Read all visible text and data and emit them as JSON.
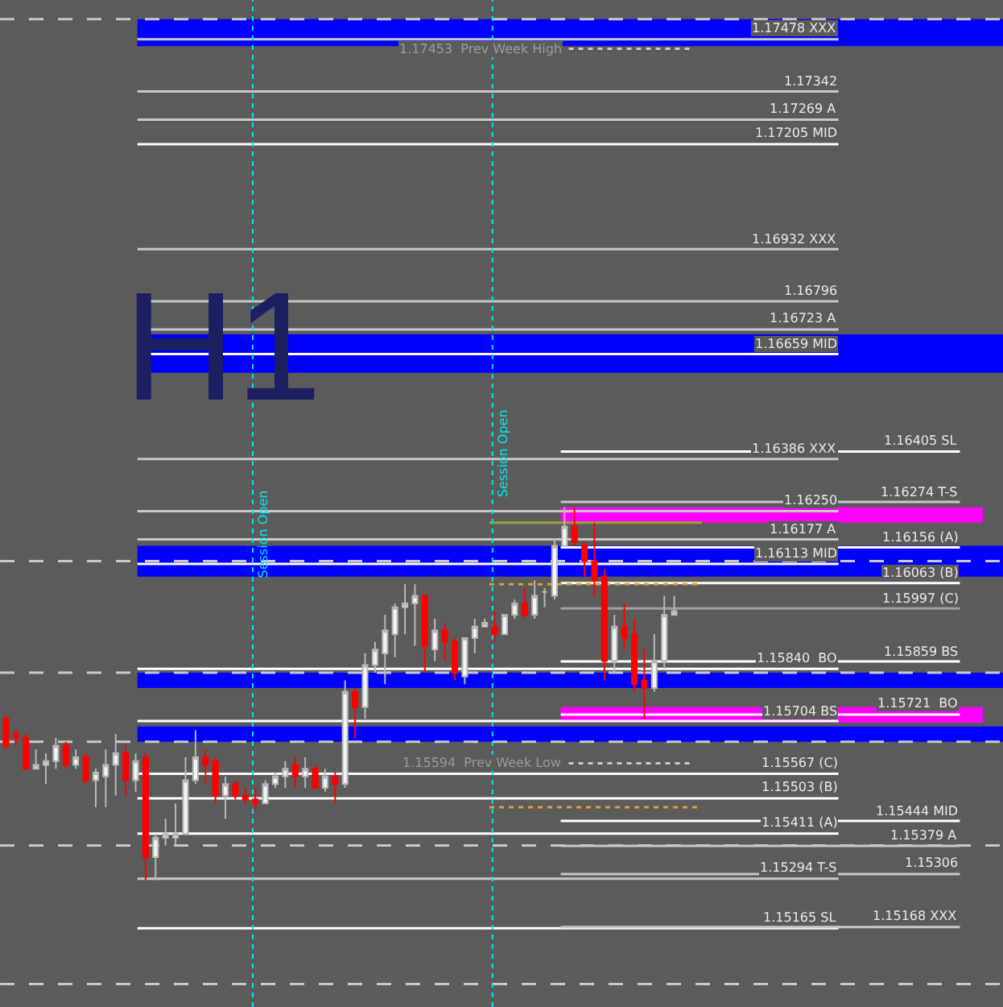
{
  "chart_data": {
    "type": "candlestick",
    "title": "H1",
    "categories": [
      null,
      null,
      null,
      null,
      null,
      null,
      null,
      null,
      null,
      null,
      null,
      null,
      null,
      null,
      null,
      null,
      null,
      null,
      null,
      null,
      null,
      null,
      null,
      null,
      null,
      null,
      null,
      null,
      null,
      null,
      null,
      null,
      null,
      null,
      null,
      null,
      null,
      null,
      null,
      null,
      null,
      null,
      null,
      null,
      null,
      null,
      null,
      null,
      null,
      null,
      null,
      null,
      null,
      null,
      null,
      null,
      null,
      null,
      null,
      null,
      null,
      null,
      null,
      null,
      null,
      null,
      null,
      null
    ],
    "ohlc": [
      [
        1.1571,
        1.1572,
        1.1563,
        1.1564
      ],
      [
        1.1567,
        1.1568,
        1.1564,
        1.1566
      ],
      [
        1.1566,
        1.1567,
        1.1558,
        1.1558
      ],
      [
        1.1558,
        1.1563,
        1.1558,
        1.1559
      ],
      [
        1.1559,
        1.1562,
        1.1554,
        1.156
      ],
      [
        1.156,
        1.1566,
        1.1558,
        1.1564
      ],
      [
        1.1564,
        1.1565,
        1.1558,
        1.1559
      ],
      [
        1.1559,
        1.1563,
        1.1558,
        1.1561
      ],
      [
        1.1561,
        1.1562,
        1.1554,
        1.1555
      ],
      [
        1.1555,
        1.1558,
        1.1548,
        1.1557
      ],
      [
        1.1556,
        1.1563,
        1.1548,
        1.1559
      ],
      [
        1.1559,
        1.1567,
        1.1551,
        1.1562
      ],
      [
        1.1562,
        1.1564,
        1.1551,
        1.1555
      ],
      [
        1.1555,
        1.1562,
        1.1552,
        1.156
      ],
      [
        1.1561,
        1.1562,
        1.1529,
        1.1535
      ],
      [
        1.1535,
        1.1541,
        1.1529,
        1.154
      ],
      [
        1.154,
        1.1545,
        1.1538,
        1.1541
      ],
      [
        1.154,
        1.1549,
        1.1538,
        1.1541
      ],
      [
        1.1541,
        1.1561,
        1.1541,
        1.1555
      ],
      [
        1.1555,
        1.1568,
        1.1554,
        1.1561
      ],
      [
        1.1561,
        1.1563,
        1.1554,
        1.1559
      ],
      [
        1.156,
        1.1561,
        1.1549,
        1.1551
      ],
      [
        1.1551,
        1.1556,
        1.1545,
        1.1554
      ],
      [
        1.1554,
        1.1555,
        1.155,
        1.1551
      ],
      [
        1.1551,
        1.1553,
        1.1549,
        1.155
      ],
      [
        1.155,
        1.1553,
        1.1547,
        1.1549
      ],
      [
        1.1549,
        1.1555,
        1.1549,
        1.1554
      ],
      [
        1.1554,
        1.1557,
        1.1553,
        1.1556
      ],
      [
        1.1556,
        1.156,
        1.1553,
        1.1558
      ],
      [
        1.1559,
        1.1561,
        1.1553,
        1.1556
      ],
      [
        1.1556,
        1.1561,
        1.1553,
        1.1558
      ],
      [
        1.1558,
        1.1559,
        1.1553,
        1.1553
      ],
      [
        1.1553,
        1.1558,
        1.1552,
        1.1556
      ],
      [
        1.1556,
        1.1557,
        1.1549,
        1.1554
      ],
      [
        1.1554,
        1.1581,
        1.1553,
        1.1578
      ],
      [
        1.1578,
        1.1579,
        1.1566,
        1.1574
      ],
      [
        1.1574,
        1.1588,
        1.1571,
        1.1585
      ],
      [
        1.1585,
        1.1591,
        1.1583,
        1.1589
      ],
      [
        1.1588,
        1.1598,
        1.158,
        1.1594
      ],
      [
        1.1593,
        1.1601,
        1.1587,
        1.16
      ],
      [
        1.16,
        1.1606,
        1.1593,
        1.1601
      ],
      [
        1.1601,
        1.1606,
        1.159,
        1.1603
      ],
      [
        1.1603,
        1.1603,
        1.1583,
        1.159
      ],
      [
        1.1589,
        1.1597,
        1.1586,
        1.1594
      ],
      [
        1.1594,
        1.1596,
        1.1586,
        1.1591
      ],
      [
        1.1591,
        1.1592,
        1.1581,
        1.1583
      ],
      [
        1.1582,
        1.1592,
        1.158,
        1.1592
      ],
      [
        1.1592,
        1.1597,
        1.1588,
        1.1595
      ],
      [
        1.1595,
        1.1597,
        1.1595,
        1.1596
      ],
      [
        1.1595,
        1.1599,
        1.1591,
        1.1593
      ],
      [
        1.1593,
        1.1598,
        1.1593,
        1.1598
      ],
      [
        1.1598,
        1.1602,
        1.1597,
        1.1601
      ],
      [
        1.1601,
        1.1605,
        1.1597,
        1.1598
      ],
      [
        1.1598,
        1.1607,
        1.1597,
        1.1603
      ],
      [
        1.1604,
        1.1605,
        1.16,
        1.1604
      ],
      [
        1.1603,
        1.1618,
        1.1602,
        1.1616
      ],
      [
        1.1616,
        1.1626,
        1.1616,
        1.1621
      ],
      [
        1.1621,
        1.1626,
        1.1616,
        1.1617
      ],
      [
        1.1616,
        1.1617,
        1.1608,
        1.1612
      ],
      [
        1.1612,
        1.1622,
        1.1603,
        1.1607
      ],
      [
        1.1608,
        1.161,
        1.1581,
        1.1586
      ],
      [
        1.1586,
        1.1598,
        1.1583,
        1.1595
      ],
      [
        1.1595,
        1.1601,
        1.1589,
        1.1592
      ],
      [
        1.1593,
        1.1597,
        1.1578,
        1.158
      ],
      [
        1.1581,
        1.1589,
        1.1571,
        1.1579
      ],
      [
        1.1579,
        1.1593,
        1.1578,
        1.1586
      ],
      [
        1.1586,
        1.1603,
        1.1584,
        1.1598
      ],
      [
        1.1598,
        1.1603,
        1.1598,
        1.1599
      ]
    ],
    "ylim": [
      1.1496,
      1.1758
    ],
    "legend": false,
    "ref_lines": [
      {
        "axis": "y",
        "value": 1.17478,
        "label": "1.17478 XXX",
        "color": "#c8c8c8"
      },
      {
        "axis": "y",
        "value": 1.17342,
        "label": "1.17342",
        "color": "#c8c8c8"
      },
      {
        "axis": "y",
        "value": 1.17269,
        "label": "1.17269 A",
        "color": "#c8c8c8"
      },
      {
        "axis": "y",
        "value": 1.17205,
        "label": "1.17205 MID",
        "color": "#ffffff"
      },
      {
        "axis": "y",
        "value": 1.16932,
        "label": "1.16932 XXX",
        "color": "#c8c8c8"
      },
      {
        "axis": "y",
        "value": 1.16796,
        "label": "1.16796",
        "color": "#c8c8c8"
      },
      {
        "axis": "y",
        "value": 1.16723,
        "label": "1.16723 A",
        "color": "#c8c8c8"
      },
      {
        "axis": "y",
        "value": 1.16659,
        "label": "1.16659 MID",
        "color": "#ffffff"
      },
      {
        "axis": "y",
        "value": 1.16386,
        "label": "1.16386 XXX",
        "color": "#c8c8c8"
      },
      {
        "axis": "y",
        "value": 1.1625,
        "label": "1.16250",
        "color": "#c8c8c8"
      },
      {
        "axis": "y",
        "value": 1.16177,
        "label": "1.16177 A",
        "color": "#c8c8c8"
      },
      {
        "axis": "y",
        "value": 1.16113,
        "label": "1.16113 MID",
        "color": "#ffffff"
      },
      {
        "axis": "y",
        "value": 1.1584,
        "label": "1.15840  BO",
        "color": "#ffffff"
      },
      {
        "axis": "y",
        "value": 1.15704,
        "label": "1.15704 BS",
        "color": "#ffffff"
      },
      {
        "axis": "y",
        "value": 1.15567,
        "label": "1.15567 (C)",
        "color": "#ffffff"
      },
      {
        "axis": "y",
        "value": 1.15503,
        "label": "1.15503 (B)",
        "color": "#ffffff"
      },
      {
        "axis": "y",
        "value": 1.15411,
        "label": "1.15411 (A)",
        "color": "#ffffff"
      },
      {
        "axis": "y",
        "value": 1.15294,
        "label": "1.15294 T-S",
        "color": "#c8c8c8"
      },
      {
        "axis": "y",
        "value": 1.15165,
        "label": "1.15165 SL",
        "color": "#ffffff"
      },
      {
        "axis": "y",
        "value": 1.16405,
        "label": "1.16405 SL",
        "color": "#ffffff"
      },
      {
        "axis": "y",
        "value": 1.16274,
        "label": "1.16274 T-S",
        "color": "#c8c8c8"
      },
      {
        "axis": "y",
        "value": 1.16156,
        "label": "1.16156 (A)",
        "color": "#ffffff"
      },
      {
        "axis": "y",
        "value": 1.16063,
        "label": "1.16063 (B)",
        "color": "#ffffff"
      },
      {
        "axis": "y",
        "value": 1.15997,
        "label": "1.15997 (C)",
        "color": "#a0a0a0"
      },
      {
        "axis": "y",
        "value": 1.15859,
        "label": "1.15859 BS",
        "color": "#ffffff"
      },
      {
        "axis": "y",
        "value": 1.15721,
        "label": "1.15721  BO",
        "color": "#ffffff"
      },
      {
        "axis": "y",
        "value": 1.15444,
        "label": "1.15444 MID",
        "color": "#ffffff"
      },
      {
        "axis": "y",
        "value": 1.15379,
        "label": "1.15379 A",
        "color": "#c8c8c8"
      },
      {
        "axis": "y",
        "value": 1.15306,
        "label": "1.15306",
        "color": "#c8c8c8"
      },
      {
        "axis": "y",
        "value": 1.15168,
        "label": "1.15168 XXX",
        "color": "#c8c8c8"
      },
      {
        "axis": "y",
        "value": 1.17453,
        "label": "1.17453  Prev Week High",
        "color": "#c8c8c8",
        "line_style": "dotted"
      },
      {
        "axis": "y",
        "value": 1.15594,
        "label": "1.15594  Prev Week Low",
        "color": "#c8c8c8",
        "line_style": "dotted"
      },
      {
        "axis": "y",
        "value": 1.1753,
        "color": "#c8c8c8",
        "line_style": "dashed"
      },
      {
        "axis": "y",
        "value": 1.1612,
        "color": "#c8c8c8",
        "line_style": "dashed"
      },
      {
        "axis": "y",
        "value": 1.1583,
        "color": "#c8c8c8",
        "line_style": "dashed"
      },
      {
        "axis": "y",
        "value": 1.1565,
        "color": "#c8c8c8",
        "line_style": "dashed"
      },
      {
        "axis": "y",
        "value": 1.1538,
        "color": "#c8c8c8",
        "line_style": "dashed"
      },
      {
        "axis": "y",
        "value": 1.1502,
        "color": "#c8c8c8",
        "line_style": "dashed"
      },
      {
        "axis": "y",
        "value": 1.1606,
        "color": "#e09a30",
        "line_style": "dotted"
      },
      {
        "axis": "y",
        "value": 1.1548,
        "color": "#e09a30",
        "line_style": "dotted"
      },
      {
        "axis": "y",
        "value": 1.1622,
        "color": "#a0a030"
      }
    ],
    "annotations": [
      "Session Open",
      "Session Open"
    ],
    "bands": [
      {
        "axis": "y",
        "from": 1.1746,
        "to": 1.1753,
        "color": "#0000ff"
      },
      {
        "axis": "y",
        "from": 1.1661,
        "to": 1.1671,
        "color": "#0000ff"
      },
      {
        "axis": "y",
        "from": 1.1608,
        "to": 1.1616,
        "color": "#0000ff"
      },
      {
        "axis": "y",
        "from": 1.1579,
        "to": 1.1583,
        "color": "#0000ff"
      },
      {
        "axis": "y",
        "from": 1.1565,
        "to": 1.1569,
        "color": "#0000ff"
      },
      {
        "axis": "y",
        "from": 1.1622,
        "to": 1.1626,
        "color": "#ff00ff"
      },
      {
        "axis": "y",
        "from": 1.157,
        "to": 1.1574,
        "color": "#ff00ff"
      }
    ]
  }
}
